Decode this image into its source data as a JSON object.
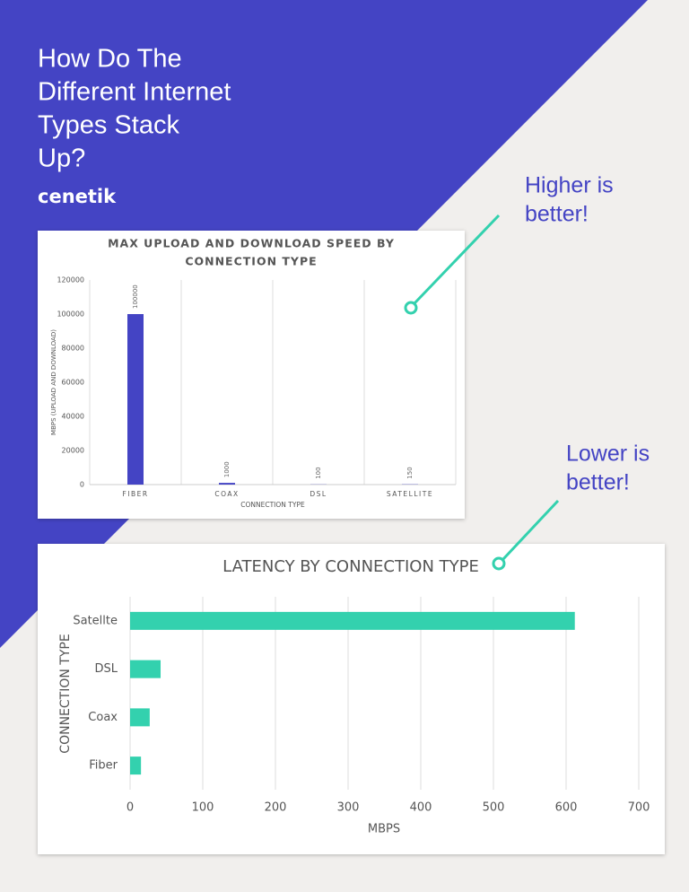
{
  "headline": [
    "How Do The",
    "Different Internet",
    "Types Stack",
    "Up?"
  ],
  "brand": "cenetik",
  "annotations": [
    [
      "Higher is",
      "better!"
    ],
    [
      "Lower is",
      "better!"
    ]
  ],
  "chart_data": [
    {
      "type": "bar",
      "orientation": "vertical",
      "title": [
        "MAX UPLOAD AND DOWNLOAD SPEED BY",
        "CONNECTION TYPE"
      ],
      "x_label": "CONNECTION TYPE",
      "y_label": "MBPS (UPLOAD AND DOWNLOAD)",
      "categories": [
        "FIBER",
        "COAX",
        "DSL",
        "SATELLITE"
      ],
      "values": [
        100000,
        1000,
        100,
        150
      ],
      "color": "#4444c4",
      "ylim": [
        0,
        120000
      ],
      "yticks": [
        0,
        20000,
        40000,
        60000,
        80000,
        100000,
        120000
      ]
    },
    {
      "type": "bar",
      "orientation": "horizontal",
      "title": [
        "LATENCY BY CONNECTION TYPE"
      ],
      "x_label": "MBPS",
      "y_label": "CONNECTION TYPE",
      "categories": [
        "Fiber",
        "Coax",
        "DSL",
        "Satellte"
      ],
      "values": [
        15,
        27,
        42,
        612
      ],
      "color": "#33d1ae",
      "xlim": [
        0,
        700
      ],
      "xticks": [
        0,
        100,
        200,
        300,
        400,
        500,
        600,
        700
      ],
      "grid": true
    }
  ]
}
